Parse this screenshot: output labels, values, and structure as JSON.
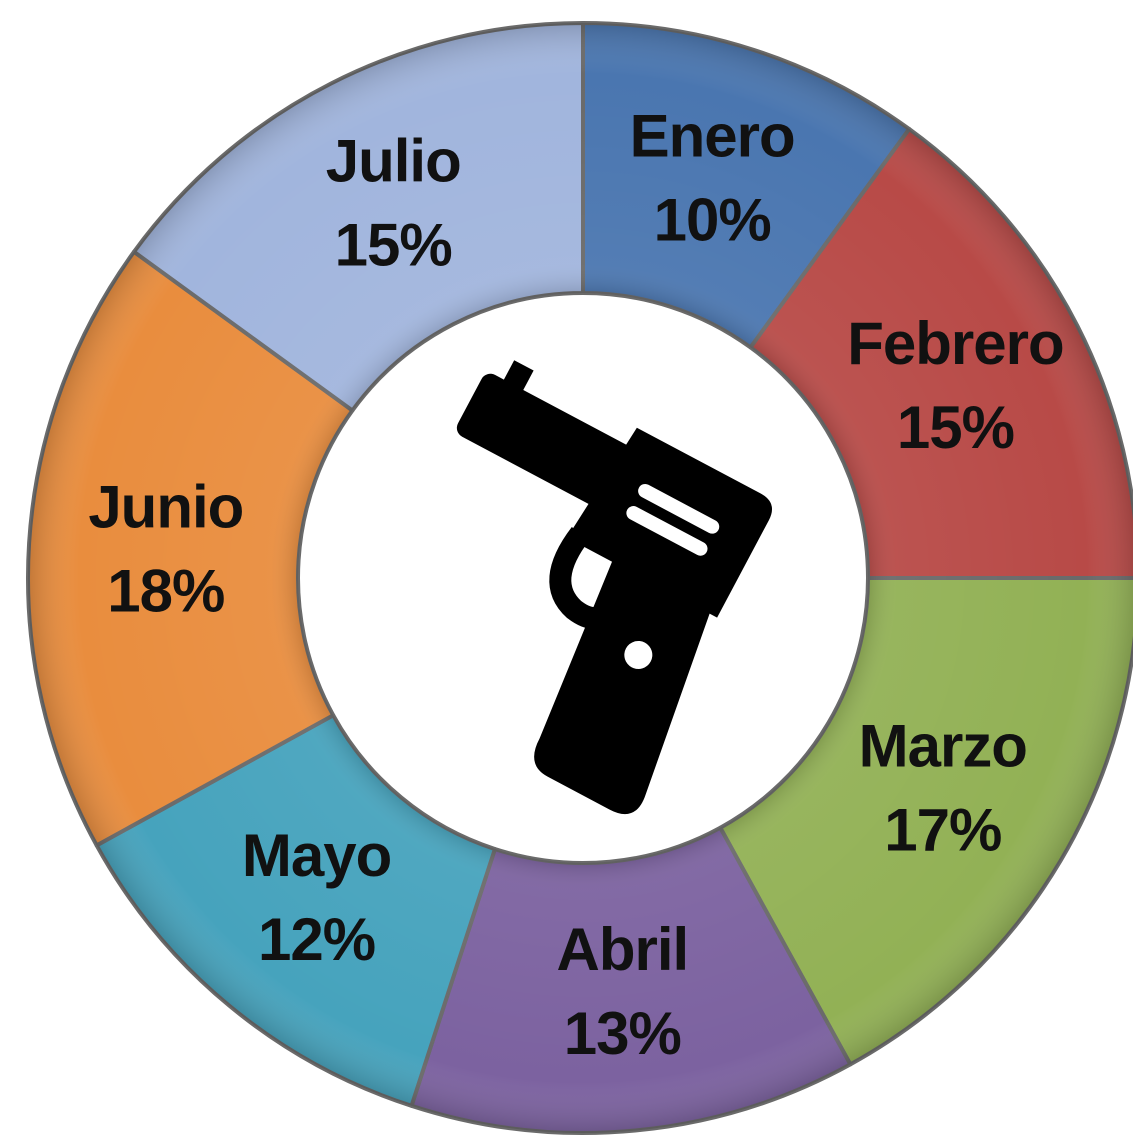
{
  "chart_data": {
    "type": "donut",
    "categories": [
      "Enero",
      "Febrero",
      "Marzo",
      "Abril",
      "Mayo",
      "Junio",
      "Julio"
    ],
    "values": [
      10,
      15,
      17,
      13,
      12,
      18,
      15
    ],
    "value_labels": [
      "10%",
      "15%",
      "17%",
      "13%",
      "12%",
      "18%",
      "15%"
    ],
    "colors": [
      "#4a76b0",
      "#b84a47",
      "#92b155",
      "#7c62a0",
      "#46a3bd",
      "#e98d3e",
      "#a1b5dd"
    ]
  }
}
